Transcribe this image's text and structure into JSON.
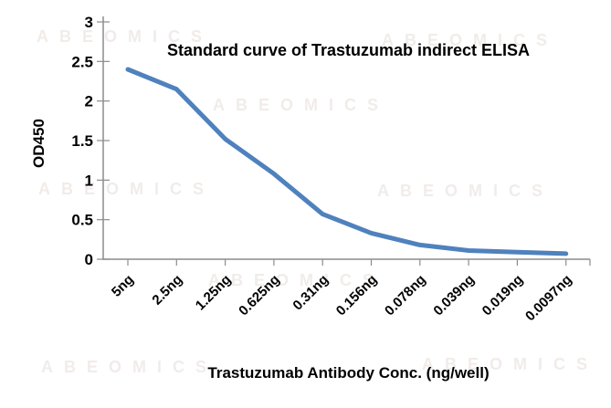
{
  "figure": {
    "watermark_text": "ABEOMICS"
  },
  "chart_data": {
    "type": "line",
    "title": "Standard curve of Trastuzumab indirect ELISA",
    "xlabel": "Trastuzumab Antibody Conc. (ng/well)",
    "ylabel": "OD450",
    "categories": [
      "5ng",
      "2.5ng",
      "1.25ng",
      "0.625ng",
      "0.31ng",
      "0.156ng",
      "0.078ng",
      "0.039ng",
      "0.019ng",
      "0.0097ng"
    ],
    "series": [
      {
        "name": "OD450",
        "values": [
          2.4,
          2.15,
          1.52,
          1.08,
          0.57,
          0.33,
          0.18,
          0.11,
          0.09,
          0.07
        ]
      }
    ],
    "y_ticks": [
      0,
      0.5,
      1,
      1.5,
      2,
      2.5,
      3
    ],
    "y_tick_labels": [
      "0",
      "0.5",
      "1",
      "1.5",
      "2",
      "2.5",
      "3"
    ],
    "ylim": [
      0,
      3
    ],
    "grid": false,
    "legend": false,
    "line_color": "#4F81BD",
    "axis_color": "#8C8C8C",
    "watermark_color": "#F1ECE9"
  }
}
